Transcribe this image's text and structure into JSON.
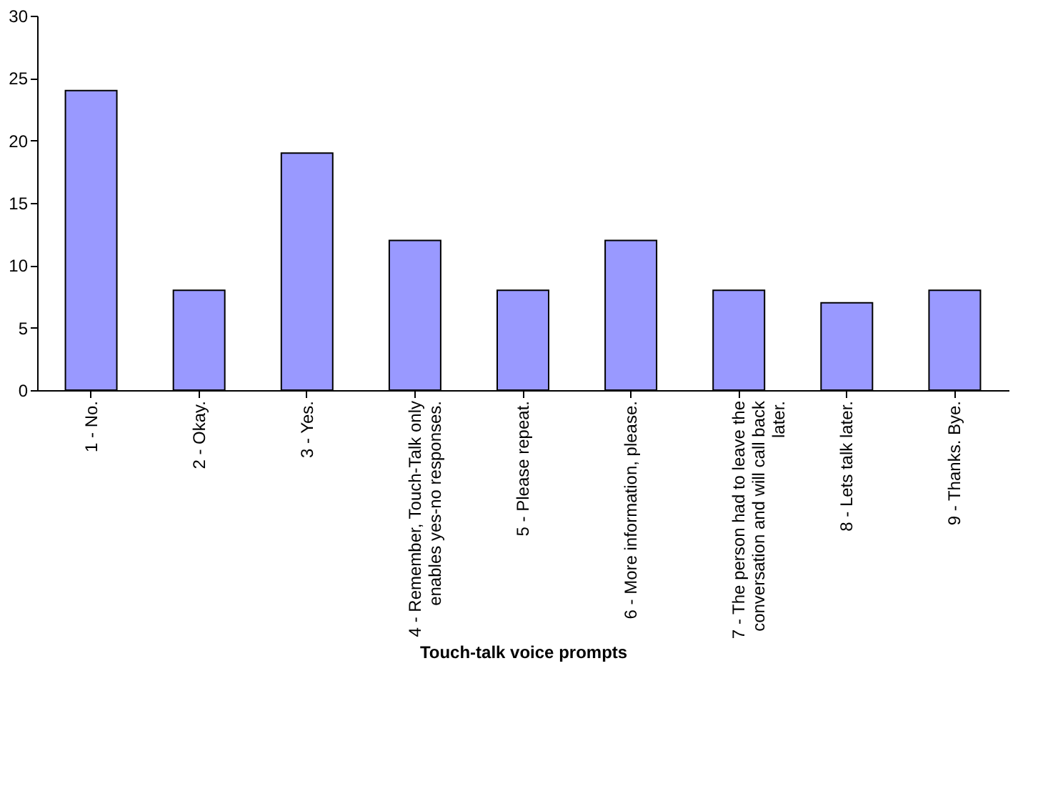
{
  "chart_data": {
    "type": "bar",
    "categories": [
      "1 - No.",
      "2 - Okay.",
      "3 - Yes.",
      "4 - Remember, Touch-Talk only\nenables yes-no responses.",
      "5 - Please repeat.",
      "6 - More information, please.",
      "7 - The person had to leave the\nconversation and will call back\nlater.",
      "8 - Lets talk later.",
      "9 - Thanks. Bye."
    ],
    "values": [
      24,
      8,
      19,
      12,
      8,
      12,
      8,
      7,
      8
    ],
    "color": "#9999ff",
    "xlabel": "Touch-talk voice prompts",
    "ylim": [
      0,
      30
    ],
    "yticks": [
      0,
      5,
      10,
      15,
      20,
      25,
      30
    ],
    "grid": false
  }
}
